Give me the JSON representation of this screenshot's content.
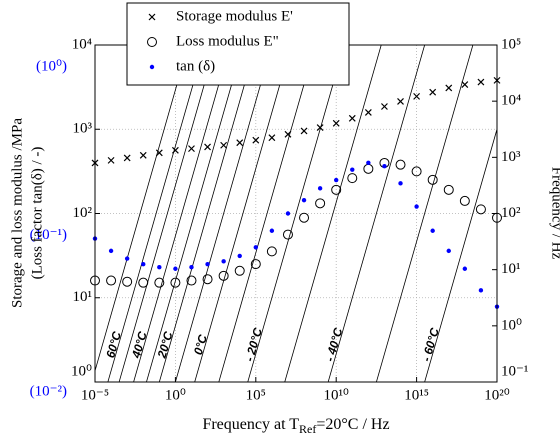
{
  "chart_data": {
    "type": "scatter",
    "xlabel": [
      "Frequency at T",
      "Ref",
      "=20°C   / Hz"
    ],
    "ylabel": [
      "Storage and loss modulus /MPa",
      "(Loss factor tan(δ) / -)"
    ],
    "y3label": "Frequency / Hz",
    "log_x": true,
    "log_y": true,
    "grid": true,
    "legend": "top",
    "x": [
      1e-05,
      0.0001,
      0.001,
      0.01,
      0.1,
      1,
      10,
      100,
      1000.0,
      10000.0,
      100000.0,
      1000000.0,
      10000000.0,
      100000000.0,
      1000000000.0,
      10000000000.0,
      100000000000.0,
      1000000000000.0,
      10000000000000.0,
      100000000000000.0,
      1000000000000000.0,
      1e+16,
      1e+17,
      1e+18,
      1e+19,
      1e+20
    ],
    "xlim": [
      1e-05,
      1e+20
    ],
    "xticks": [
      {
        "value": 1e-05,
        "label": "10⁻⁵"
      },
      {
        "value": 1,
        "label": "10⁰"
      },
      {
        "value": 100000.0,
        "label": "10⁵"
      },
      {
        "value": 10000000000.0,
        "label": "10¹⁰"
      },
      {
        "value": 1000000000000000.0,
        "label": "10¹⁵"
      },
      {
        "value": 1e+20,
        "label": "10²⁰"
      }
    ],
    "ylim": [
      1,
      10000
    ],
    "yticks": [
      {
        "value": 1,
        "label": "10⁰"
      },
      {
        "value": 10,
        "label": "10¹"
      },
      {
        "value": 100,
        "label": "10²"
      },
      {
        "value": 1000,
        "label": "10³"
      },
      {
        "value": 10000,
        "label": "10⁴"
      }
    ],
    "y2lim": [
      0.01,
      1
    ],
    "y2ticks": [
      {
        "value": 0.01,
        "label": "(10⁻²)"
      },
      {
        "value": 0.1,
        "label": "(10⁻¹)"
      },
      {
        "value": 1,
        "label": "(10⁰)"
      }
    ],
    "y2color": "#0000ff",
    "y3lim": [
      0.1,
      100000
    ],
    "y3ticks": [
      {
        "value": 0.1,
        "label": "10⁻¹"
      },
      {
        "value": 1,
        "label": "10⁰"
      },
      {
        "value": 10,
        "label": "10¹"
      },
      {
        "value": 100,
        "label": "10²"
      },
      {
        "value": 1000,
        "label": "10³"
      },
      {
        "value": 10000,
        "label": "10⁴"
      },
      {
        "value": 100000,
        "label": "10⁵"
      }
    ],
    "series": [
      {
        "name": "Storage modulus E'",
        "color": "#000000",
        "marker": "x",
        "values": [
          398,
          427,
          457,
          490,
          525,
          562,
          589,
          617,
          646,
          692,
          741,
          794,
          871,
          955,
          1047,
          1175,
          1349,
          1585,
          1862,
          2138,
          2455,
          2754,
          3090,
          3388,
          3631,
          3802
        ]
      },
      {
        "name": "Loss modulus E\"",
        "color": "#000000",
        "marker": "o",
        "values": [
          16,
          16,
          15.5,
          15.1,
          15.1,
          15.1,
          16,
          16.6,
          18.2,
          20.9,
          25.1,
          35.5,
          56.2,
          89.1,
          132,
          191,
          263,
          339,
          398,
          380,
          316,
          251,
          191,
          141,
          112,
          89
        ]
      },
      {
        "name": "tan (δ)",
        "color": "#0000ff",
        "marker": "dot",
        "axis": "y2",
        "values": [
          0.071,
          0.06,
          0.054,
          0.05,
          0.048,
          0.047,
          0.048,
          0.05,
          0.052,
          0.056,
          0.063,
          0.079,
          0.1,
          0.12,
          0.141,
          0.158,
          0.182,
          0.2,
          0.191,
          0.151,
          0.11,
          0.079,
          0.06,
          0.047,
          0.035,
          0.028
        ]
      }
    ],
    "isotherms": {
      "labels": [
        null,
        "60°C",
        null,
        "40°C",
        null,
        "20°C",
        null,
        "0°C",
        null,
        "- 20°C",
        null,
        "- 40°C",
        null,
        "- 60°C"
      ],
      "log_shift": [
        -4.2,
        -3.2,
        -2.5,
        -1.6,
        -0.8,
        0,
        1,
        2.2,
        3.7,
        5.5,
        7.8,
        10.5,
        13.5,
        16.5
      ]
    }
  }
}
